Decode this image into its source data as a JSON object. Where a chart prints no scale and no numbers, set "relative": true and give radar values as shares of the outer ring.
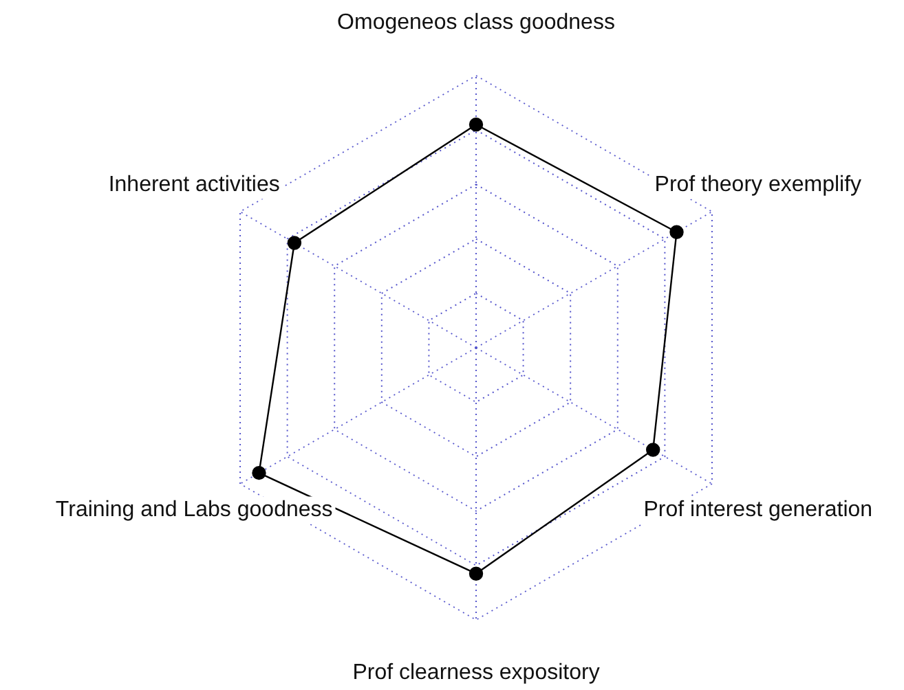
{
  "chart_data": {
    "type": "radar",
    "relative": true,
    "categories": [
      "Omogeneos class goodness",
      "Prof theory exemplify",
      "Prof interest generation",
      "Prof clearness expository",
      "Training and Labs goodness",
      "Inherent activities"
    ],
    "series": [
      {
        "color": "#000000",
        "values": [
          0.82,
          0.85,
          0.75,
          0.83,
          0.92,
          0.77
        ]
      }
    ],
    "grid": true,
    "marker": "circle",
    "line_style": "solid"
  }
}
